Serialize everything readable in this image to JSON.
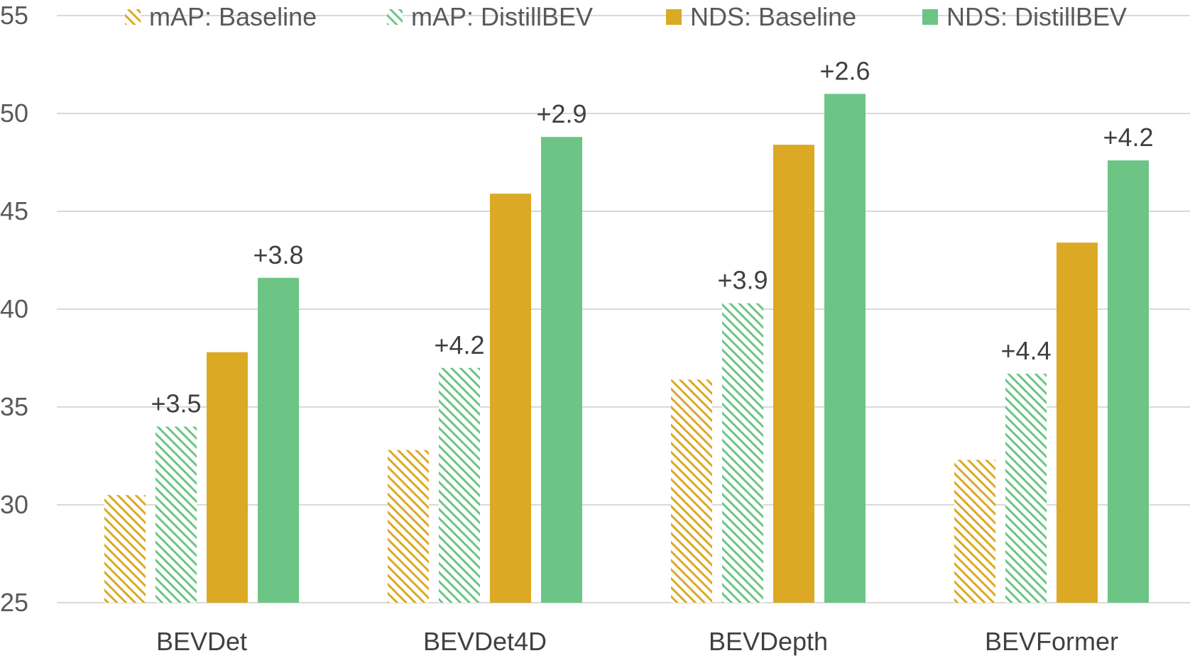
{
  "chart_data": {
    "type": "bar",
    "title": "",
    "xlabel": "",
    "ylabel": "",
    "ylim": [
      25,
      55
    ],
    "yticks": [
      25,
      30,
      35,
      40,
      45,
      50,
      55
    ],
    "grid": true,
    "legend_position": "top",
    "categories": [
      "BEVDet",
      "BEVDet4D",
      "BEVDepth",
      "BEVFormer"
    ],
    "series": [
      {
        "name": "mAP: Baseline",
        "values": [
          30.5,
          32.8,
          36.4,
          32.3
        ],
        "color": "#DBA924",
        "pattern": "hatch"
      },
      {
        "name": "mAP: DistillBEV",
        "values": [
          34.0,
          37.0,
          40.3,
          36.7
        ],
        "color": "#6CC585",
        "pattern": "hatch"
      },
      {
        "name": "NDS: Baseline",
        "values": [
          37.8,
          45.9,
          48.4,
          43.4
        ],
        "color": "#DBA924",
        "pattern": "solid"
      },
      {
        "name": "NDS: DistillBEV",
        "values": [
          41.6,
          48.8,
          51.0,
          47.6
        ],
        "color": "#6CC585",
        "pattern": "solid"
      }
    ],
    "annotations": [
      {
        "series": 1,
        "category": 0,
        "text": "+3.5"
      },
      {
        "series": 3,
        "category": 0,
        "text": "+3.8"
      },
      {
        "series": 1,
        "category": 1,
        "text": "+4.2"
      },
      {
        "series": 3,
        "category": 1,
        "text": "+2.9"
      },
      {
        "series": 1,
        "category": 2,
        "text": "+3.9"
      },
      {
        "series": 3,
        "category": 2,
        "text": "+2.6"
      },
      {
        "series": 1,
        "category": 3,
        "text": "+4.4"
      },
      {
        "series": 3,
        "category": 3,
        "text": "+4.2"
      }
    ]
  }
}
